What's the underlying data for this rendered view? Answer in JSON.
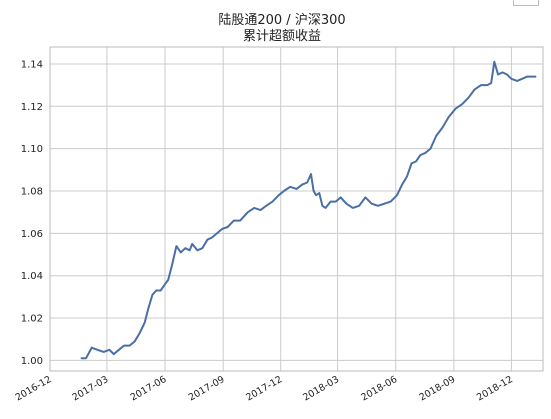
{
  "chart_data": {
    "type": "line",
    "title": "陆股通200 / 沪深300",
    "subtitle": "累计超额收益",
    "xlabel": "",
    "ylabel": "",
    "x_ticks": [
      "2016-12",
      "2017-03",
      "2017-06",
      "2017-09",
      "2017-12",
      "2018-03",
      "2018-06",
      "2018-09",
      "2018-12"
    ],
    "y_ticks": [
      "1.00",
      "1.02",
      "1.04",
      "1.06",
      "1.08",
      "1.10",
      "1.12",
      "1.14"
    ],
    "xlim": [
      "2016-12-01",
      "2019-01-20"
    ],
    "ylim": [
      0.995,
      1.148
    ],
    "grid": true,
    "colors": {
      "line": "#4a6fa5",
      "grid": "#cccccc",
      "axis": "#bbbbbb"
    },
    "series": [
      {
        "x": [
          "2017-01-20",
          "2017-01-27",
          "2017-02-05",
          "2017-02-14",
          "2017-02-24",
          "2017-03-05",
          "2017-03-12",
          "2017-03-20",
          "2017-03-28",
          "2017-04-06",
          "2017-04-14",
          "2017-04-22",
          "2017-04-30",
          "2017-05-05",
          "2017-05-12",
          "2017-05-18",
          "2017-05-25",
          "2017-06-01",
          "2017-06-06",
          "2017-06-12",
          "2017-06-19",
          "2017-06-26",
          "2017-07-03",
          "2017-07-10",
          "2017-07-14",
          "2017-07-22",
          "2017-07-30",
          "2017-08-07",
          "2017-08-14",
          "2017-08-22",
          "2017-08-30",
          "2017-09-08",
          "2017-09-18",
          "2017-09-28",
          "2017-10-10",
          "2017-10-20",
          "2017-10-30",
          "2017-11-08",
          "2017-11-18",
          "2017-11-28",
          "2017-12-06",
          "2017-12-16",
          "2017-12-26",
          "2018-01-04",
          "2018-01-12",
          "2018-01-18",
          "2018-01-22",
          "2018-01-26",
          "2018-01-31",
          "2018-02-05",
          "2018-02-10",
          "2018-02-18",
          "2018-02-26",
          "2018-03-06",
          "2018-03-15",
          "2018-03-25",
          "2018-04-04",
          "2018-04-14",
          "2018-04-24",
          "2018-05-04",
          "2018-05-14",
          "2018-05-24",
          "2018-06-03",
          "2018-06-11",
          "2018-06-19",
          "2018-06-26",
          "2018-07-03",
          "2018-07-10",
          "2018-07-18",
          "2018-07-26",
          "2018-08-04",
          "2018-08-14",
          "2018-08-24",
          "2018-09-04",
          "2018-09-14",
          "2018-09-24",
          "2018-10-04",
          "2018-10-14",
          "2018-10-24",
          "2018-10-30",
          "2018-11-04",
          "2018-11-10",
          "2018-11-17",
          "2018-11-24",
          "2018-12-01",
          "2018-12-10",
          "2018-12-18",
          "2018-12-26",
          "2019-01-02",
          "2019-01-08"
        ],
        "values": [
          1.001,
          1.001,
          1.006,
          1.005,
          1.004,
          1.005,
          1.003,
          1.005,
          1.007,
          1.007,
          1.009,
          1.013,
          1.018,
          1.024,
          1.031,
          1.033,
          1.033,
          1.036,
          1.038,
          1.045,
          1.054,
          1.051,
          1.053,
          1.052,
          1.055,
          1.052,
          1.053,
          1.057,
          1.058,
          1.06,
          1.062,
          1.063,
          1.066,
          1.066,
          1.07,
          1.072,
          1.071,
          1.073,
          1.075,
          1.078,
          1.08,
          1.082,
          1.081,
          1.083,
          1.084,
          1.088,
          1.08,
          1.078,
          1.079,
          1.073,
          1.072,
          1.075,
          1.075,
          1.077,
          1.074,
          1.072,
          1.073,
          1.077,
          1.074,
          1.073,
          1.074,
          1.075,
          1.078,
          1.083,
          1.087,
          1.093,
          1.094,
          1.097,
          1.098,
          1.1,
          1.106,
          1.11,
          1.115,
          1.119,
          1.121,
          1.124,
          1.128,
          1.13,
          1.13,
          1.131,
          1.141,
          1.135,
          1.136,
          1.135,
          1.133,
          1.132,
          1.133,
          1.134,
          1.134,
          1.134
        ]
      }
    ]
  }
}
